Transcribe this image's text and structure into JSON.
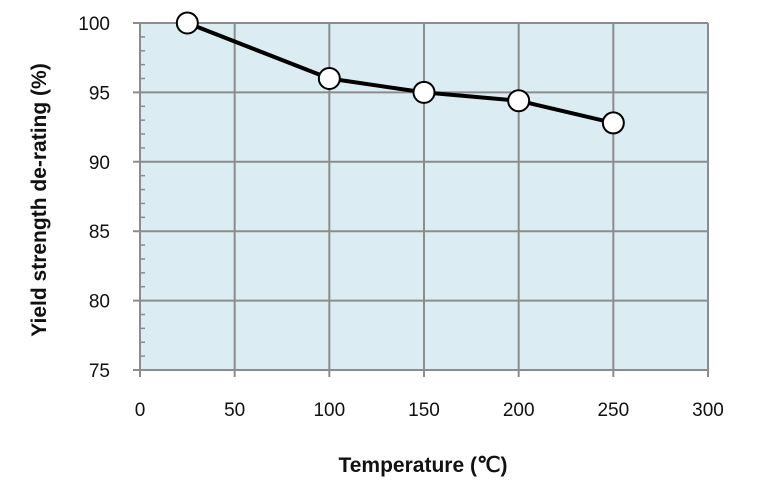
{
  "chart_data": {
    "type": "line",
    "title": "",
    "xlabel": "Temperature (℃)",
    "ylabel": "Yield strength de-rating (%)",
    "xlim": [
      0,
      300
    ],
    "ylim": [
      75,
      100
    ],
    "xticks": [
      0,
      50,
      100,
      150,
      200,
      250,
      300
    ],
    "yticks": [
      75,
      80,
      85,
      90,
      95,
      100
    ],
    "grid": true,
    "legend": "none",
    "colors": {
      "plot_background": "#dbedf3",
      "grid": "#8c8c8c",
      "line": "#000000",
      "marker_fill": "#ffffff"
    },
    "series": [
      {
        "x": [
          25,
          100,
          150,
          200,
          250
        ],
        "y": [
          100,
          96.0,
          95.0,
          94.4,
          92.8
        ],
        "marker": "circle-open"
      }
    ]
  }
}
